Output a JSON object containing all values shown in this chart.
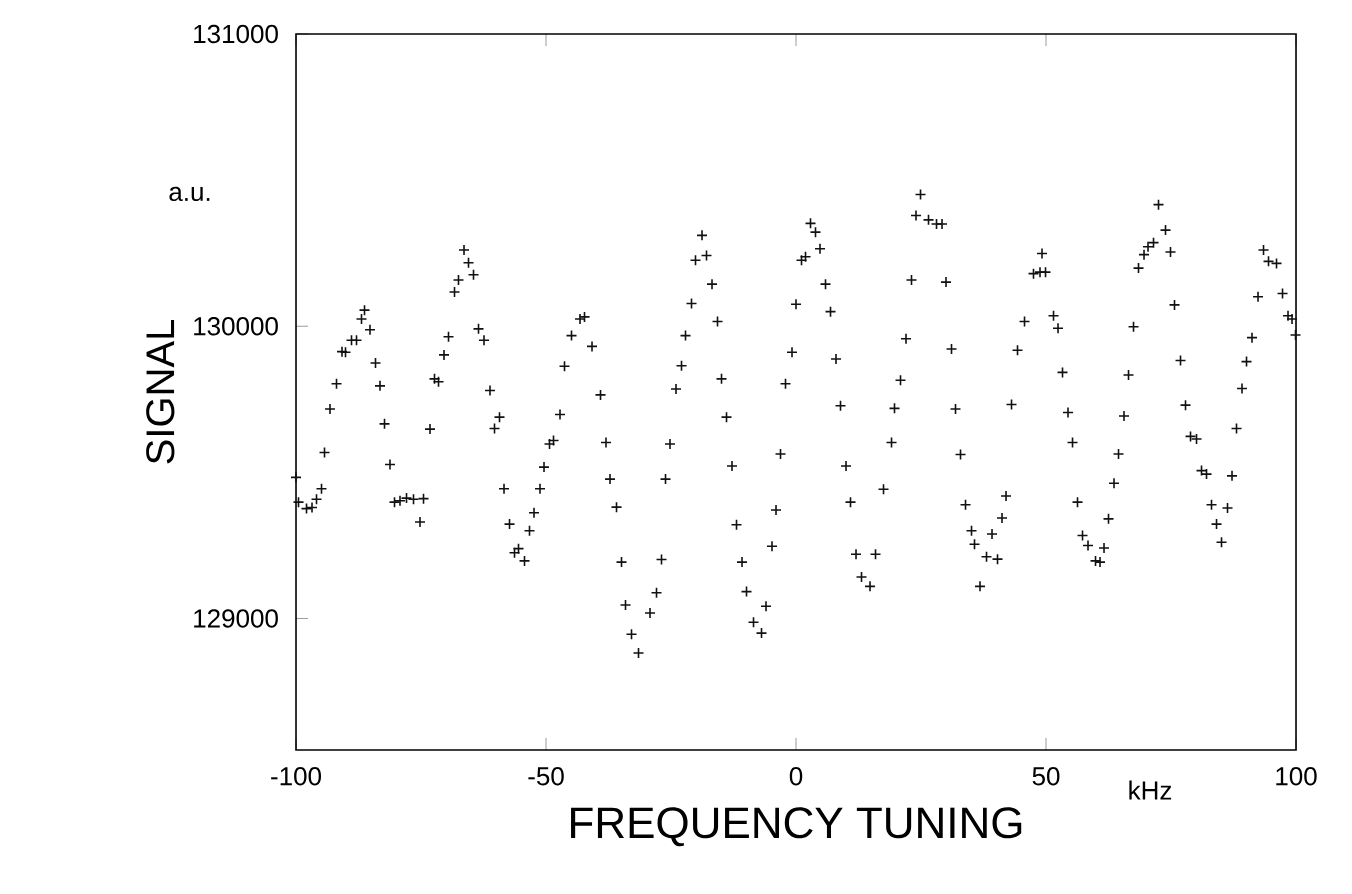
{
  "chart_data": {
    "type": "scatter",
    "xlabel": "FREQUENCY TUNING",
    "ylabel": "SIGNAL",
    "annotations": [
      "a.u.",
      "kHz"
    ],
    "xlim": [
      -100,
      100
    ],
    "ylim": [
      128550,
      131000
    ],
    "xticks": [
      -100,
      -50,
      0,
      50,
      100
    ],
    "yticks": [
      129000,
      130000,
      131000
    ],
    "grid": false,
    "marker": "cross",
    "color": "#111111",
    "x": [
      -100.0,
      -99.5,
      -97.9,
      -96.8,
      -95.9,
      -94.9,
      -94.3,
      -93.2,
      -91.9,
      -90.8,
      -90.1,
      -88.9,
      -87.9,
      -86.9,
      -86.3,
      -85.2,
      -84.1,
      -83.2,
      -82.3,
      -81.2,
      -80.3,
      -79.2,
      -77.9,
      -76.5,
      -75.2,
      -74.5,
      -73.2,
      -72.3,
      -71.5,
      -70.4,
      -69.5,
      -68.3,
      -67.5,
      -66.4,
      -65.5,
      -64.5,
      -63.5,
      -62.4,
      -61.2,
      -60.3,
      -59.3,
      -58.4,
      -57.3,
      -56.3,
      -55.5,
      -54.3,
      -53.3,
      -52.4,
      -51.2,
      -50.4,
      -49.3,
      -48.5,
      -47.2,
      -46.3,
      -44.9,
      -43.2,
      -42.3,
      -40.8,
      -39.1,
      -38.0,
      -37.2,
      -35.9,
      -34.9,
      -34.1,
      -32.9,
      -31.5,
      -29.2,
      -27.9,
      -26.9,
      -26.1,
      -25.2,
      -24.0,
      -22.9,
      -22.1,
      -20.9,
      -20.1,
      -18.8,
      -17.9,
      -16.8,
      -15.7,
      -14.9,
      -13.9,
      -12.8,
      -11.9,
      -10.8,
      -9.9,
      -8.5,
      -6.9,
      -6.0,
      -4.8,
      -4.0,
      -3.1,
      -2.1,
      -0.8,
      0.0,
      1.1,
      1.9,
      2.9,
      3.9,
      4.8,
      5.9,
      6.9,
      8.0,
      8.9,
      10.0,
      10.9,
      12.0,
      13.1,
      14.8,
      15.9,
      17.5,
      19.1,
      19.7,
      20.9,
      22.0,
      23.1,
      24.0,
      24.9,
      26.5,
      28.1,
      29.2,
      30.0,
      31.1,
      31.9,
      32.9,
      33.9,
      35.1,
      35.7,
      36.8,
      38.1,
      39.2,
      40.3,
      41.2,
      42.0,
      43.1,
      44.3,
      45.7,
      47.5,
      48.8,
      49.2,
      49.9,
      51.5,
      52.4,
      53.3,
      54.4,
      55.3,
      56.3,
      57.3,
      58.4,
      59.9,
      60.8,
      61.6,
      62.5,
      63.6,
      64.5,
      65.6,
      66.5,
      67.5,
      68.5,
      69.6,
      70.4,
      71.5,
      72.5,
      73.9,
      74.9,
      75.7,
      76.9,
      77.9,
      78.9,
      80.1,
      81.1,
      82.1,
      83.1,
      84.1,
      85.1,
      86.3,
      87.2,
      88.1,
      89.2,
      90.1,
      91.2,
      92.4,
      93.5,
      94.5,
      96.1,
      97.3,
      98.4,
      99.2,
      99.9
    ],
    "values": [
      129483,
      129398,
      129376,
      129380,
      129408,
      129444,
      129568,
      129717,
      129803,
      129913,
      129911,
      129952,
      129952,
      130025,
      130055,
      129988,
      129874,
      129796,
      129666,
      129527,
      129398,
      129403,
      129412,
      129408,
      129330,
      129410,
      129648,
      129820,
      129810,
      129902,
      129964,
      130117,
      130158,
      130261,
      130217,
      130176,
      129991,
      129952,
      129780,
      129650,
      129689,
      129444,
      129323,
      129225,
      129239,
      129197,
      129300,
      129362,
      129444,
      129518,
      129597,
      129609,
      129698,
      129863,
      129968,
      130025,
      130032,
      129931,
      129765,
      129602,
      129477,
      129381,
      129193,
      129046,
      128946,
      128882,
      129019,
      129088,
      129202,
      129477,
      129597,
      129785,
      129865,
      129968,
      130078,
      130226,
      130311,
      130242,
      130144,
      130016,
      129820,
      129689,
      129522,
      129321,
      129193,
      129092,
      128987,
      128950,
      129042,
      129247,
      129371,
      129563,
      129803,
      129911,
      130075,
      130226,
      130238,
      130352,
      130322,
      130265,
      130144,
      130050,
      129888,
      129728,
      129522,
      129398,
      129220,
      129142,
      129110,
      129220,
      129442,
      129602,
      129719,
      129815,
      129957,
      130158,
      130379,
      130451,
      130364,
      130350,
      130350,
      130151,
      129922,
      129717,
      129561,
      129389,
      129300,
      129254,
      129110,
      129211,
      129289,
      129203,
      129344,
      129419,
      129732,
      129918,
      130016,
      130180,
      130185,
      130249,
      130185,
      130036,
      129993,
      129842,
      129705,
      129602,
      129398,
      129284,
      129250,
      129197,
      129193,
      129241,
      129341,
      129463,
      129563,
      129693,
      129833,
      129998,
      130199,
      130245,
      130272,
      130286,
      130416,
      130329,
      130254,
      130073,
      129883,
      129730,
      129623,
      129614,
      129506,
      129494,
      129389,
      129323,
      129261,
      129378,
      129488,
      129650,
      129787,
      129879,
      129961,
      130101,
      130261,
      130222,
      130215,
      130112,
      130036,
      130025,
      129970
    ]
  }
}
